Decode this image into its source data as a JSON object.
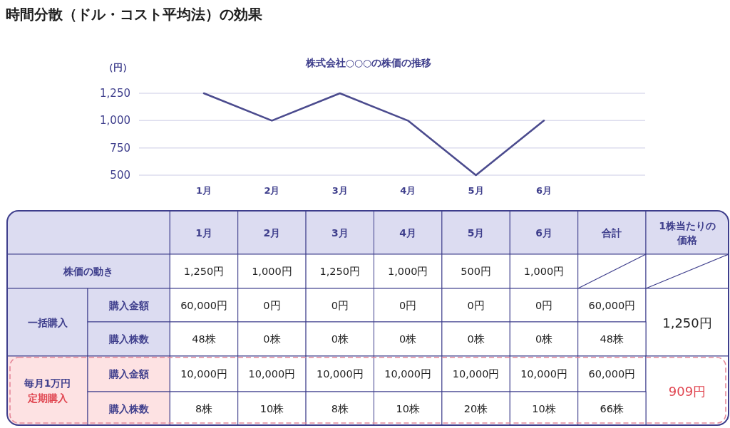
{
  "chart_data": [
    {
      "type": "line",
      "title": "時間分散（ドル・コスト平均法）の効果",
      "subtitle": "株式会社○○○の株価の推移",
      "ylabel": "（円）",
      "categories": [
        "1月",
        "2月",
        "3月",
        "4月",
        "5月",
        "6月"
      ],
      "values": [
        1250,
        1000,
        1250,
        1000,
        500,
        1000
      ],
      "value_labels": [
        "1,250円",
        "1,000円",
        "1,250円",
        "1,000円",
        "500円",
        "1,000円"
      ],
      "color": "#4b4b8e",
      "ylim": [
        500,
        1250
      ],
      "yticks": [
        500,
        750,
        {
          "value": 1000,
          "label": "1,000"
        },
        {
          "value": 1250,
          "label": "1,250"
        }
      ],
      "grid": "y"
    },
    {
      "type": "other",
      "annotations": [
        "合計",
        "1株当たりの価格",
        "株価の動き",
        "一括購入",
        "購入金額",
        "60,000円",
        "0円",
        "0円",
        "0円",
        "0円",
        "0円",
        "60,000円",
        "1,250円",
        "購入株数",
        "48株",
        "0株",
        "0株",
        "0株",
        "0株",
        "0株",
        "48株",
        "毎月1万円",
        "定期購入",
        "購入金額",
        "10,000円",
        "10,000円",
        "10,000円",
        "10,000円",
        "10,000円",
        "10,000円",
        "60,000円",
        "909円",
        "購入株数",
        "8株",
        "10株",
        "8株",
        "10株",
        "20株",
        "10株",
        "66株"
      ]
    }
  ]
}
